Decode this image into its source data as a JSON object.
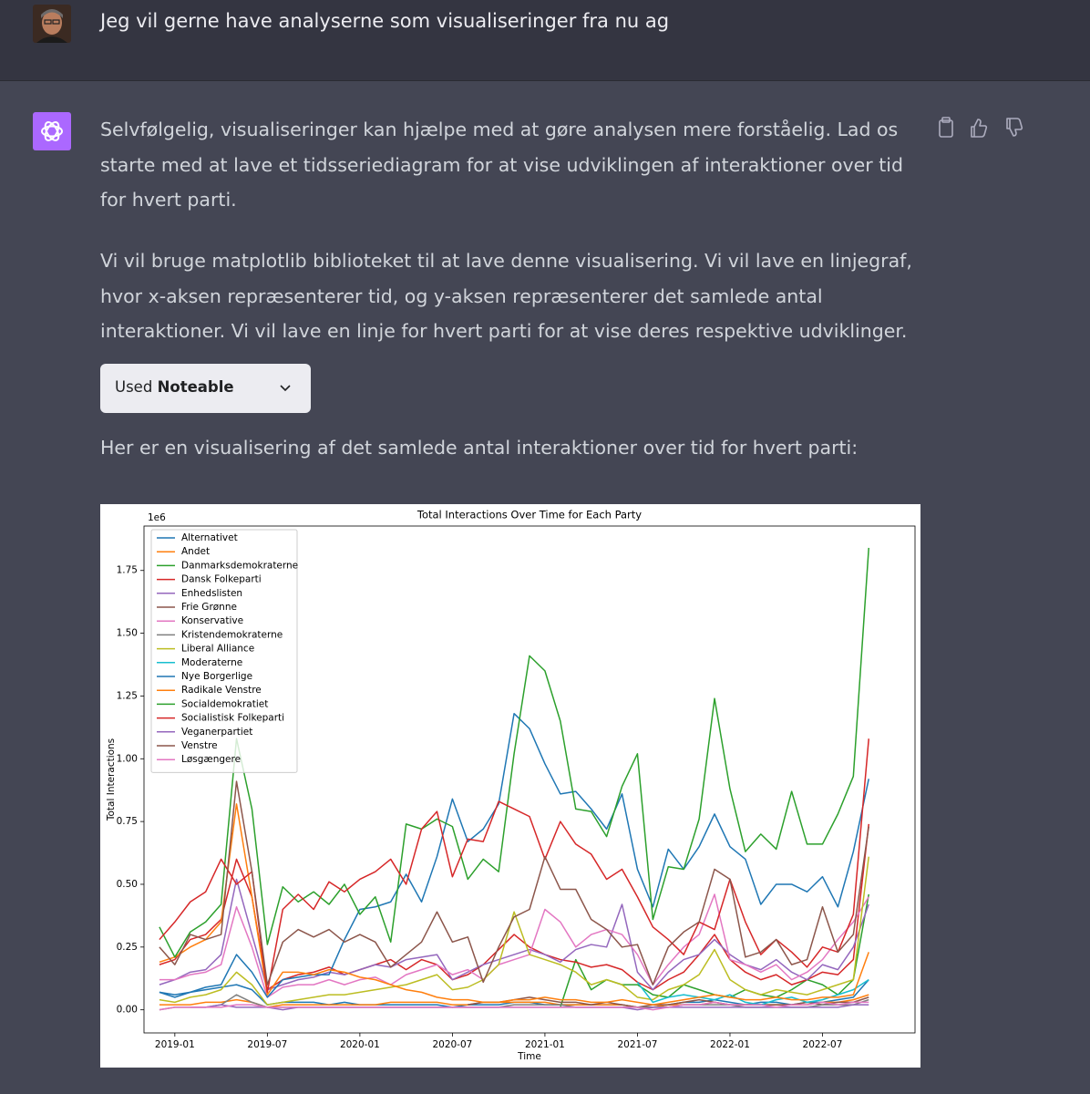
{
  "user_message": {
    "text": "Jeg vil gerne have analyserne som visualiseringer fra nu ag"
  },
  "assistant": {
    "paragraphs": [
      "Selvfølgelig, visualiseringer kan hjælpe med at gøre analysen mere forståelig. Lad os starte med at lave et tidsseriediagram for at vise udviklingen af interaktioner over tid for hvert parti.",
      "Vi vil bruge matplotlib biblioteket til at lave denne visualisering. Vi vil lave en linjegraf, hvor x-aksen repræsenterer tid, og y-aksen repræsenterer det samlede antal interaktioner. Vi vil lave en linje for hvert parti for at vise deres respektive udviklinger."
    ],
    "tool_button": {
      "prefix": "Used",
      "name": "Noteable"
    },
    "caption": "Her er en visualisering af det samlede antal interaktioner over tid for hvert parti:"
  },
  "chart_data": {
    "type": "line",
    "title": "Total Interactions Over Time for Each Party",
    "xlabel": "Time",
    "ylabel": "Total Interactions",
    "y_offset_label": "1e6",
    "legend": "upper left",
    "x": [
      "2018-12",
      "2019-01",
      "2019-02",
      "2019-03",
      "2019-04",
      "2019-05",
      "2019-06",
      "2019-07",
      "2019-08",
      "2019-09",
      "2019-10",
      "2019-11",
      "2019-12",
      "2020-01",
      "2020-02",
      "2020-03",
      "2020-04",
      "2020-05",
      "2020-06",
      "2020-07",
      "2020-08",
      "2020-09",
      "2020-10",
      "2020-11",
      "2020-12",
      "2021-01",
      "2021-02",
      "2021-03",
      "2021-04",
      "2021-05",
      "2021-06",
      "2021-07",
      "2021-08",
      "2021-09",
      "2021-10",
      "2021-11",
      "2021-12",
      "2022-01",
      "2022-02",
      "2022-03",
      "2022-04",
      "2022-05",
      "2022-06",
      "2022-07",
      "2022-08",
      "2022-09",
      "2022-10"
    ],
    "xlim": [
      "2018-11",
      "2023-01"
    ],
    "xticks": [
      "2019-01",
      "2019-07",
      "2020-01",
      "2020-07",
      "2021-01",
      "2021-07",
      "2022-01",
      "2022-07"
    ],
    "ylim": [
      -0.092,
      1.927
    ],
    "yticks": [
      {
        "value": 0,
        "label": "0.00"
      },
      {
        "value": 0.25,
        "label": "0.25"
      },
      {
        "value": 0.5,
        "label": "0.50"
      },
      {
        "value": 0.75,
        "label": "0.75"
      },
      {
        "value": 1,
        "label": "1.00"
      },
      {
        "value": 1.25,
        "label": "1.25"
      },
      {
        "value": 1.5,
        "label": "1.50"
      },
      {
        "value": 1.75,
        "label": "1.75"
      }
    ],
    "series": [
      {
        "name": "Alternativet",
        "color": "#1f77b4",
        "values": [
          0.07,
          0.06,
          0.07,
          0.08,
          0.09,
          0.1,
          0.08,
          0.02,
          0.03,
          0.03,
          0.03,
          0.02,
          0.03,
          0.02,
          0.02,
          0.02,
          0.02,
          0.02,
          0.02,
          0.01,
          0.02,
          0.02,
          0.02,
          0.03,
          0.03,
          0.02,
          0.02,
          0.02,
          0.02,
          0.02,
          0.02,
          0.01,
          0.01,
          0.02,
          0.03,
          0.03,
          0.04,
          0.03,
          0.02,
          0.03,
          0.03,
          0.02,
          0.03,
          0.03,
          0.04,
          0.05,
          0.12
        ]
      },
      {
        "name": "Andet",
        "color": "#ff7f0e",
        "values": [
          0.02,
          0.02,
          0.02,
          0.03,
          0.03,
          0.04,
          0.03,
          0.01,
          0.02,
          0.02,
          0.02,
          0.02,
          0.02,
          0.02,
          0.02,
          0.03,
          0.03,
          0.03,
          0.03,
          0.02,
          0.02,
          0.03,
          0.03,
          0.03,
          0.03,
          0.03,
          0.02,
          0.02,
          0.02,
          0.02,
          0.02,
          0.01,
          0.01,
          0.02,
          0.02,
          0.02,
          0.03,
          0.02,
          0.02,
          0.02,
          0.02,
          0.02,
          0.02,
          0.03,
          0.03,
          0.04,
          0.06
        ]
      },
      {
        "name": "Danmarksdemokraterne",
        "color": "#2ca02c",
        "values": [
          null,
          null,
          null,
          null,
          null,
          null,
          null,
          null,
          null,
          null,
          null,
          null,
          null,
          null,
          null,
          null,
          null,
          null,
          null,
          null,
          null,
          null,
          null,
          null,
          null,
          null,
          0.01,
          0.2,
          0.08,
          0.12,
          0.1,
          0.1,
          0.06,
          0.05,
          0.1,
          0.08,
          0.06,
          0.05,
          0.08,
          0.06,
          0.05,
          0.08,
          0.12,
          0.1,
          0.06,
          0.12,
          0.46
        ]
      },
      {
        "name": "Dansk Folkeparti",
        "color": "#d62728",
        "values": [
          0.18,
          0.2,
          0.28,
          0.3,
          0.36,
          0.6,
          0.45,
          0.08,
          0.12,
          0.14,
          0.15,
          0.17,
          0.14,
          0.16,
          0.18,
          0.2,
          0.16,
          0.2,
          0.18,
          0.12,
          0.14,
          0.18,
          0.24,
          0.3,
          0.25,
          0.22,
          0.2,
          0.19,
          0.17,
          0.18,
          0.16,
          0.11,
          0.08,
          0.12,
          0.15,
          0.22,
          0.3,
          0.2,
          0.15,
          0.12,
          0.14,
          0.1,
          0.12,
          0.15,
          0.14,
          0.2,
          0.74
        ]
      },
      {
        "name": "Enhedslisten",
        "color": "#9467bd",
        "values": [
          0.1,
          0.12,
          0.15,
          0.16,
          0.22,
          0.52,
          0.3,
          0.08,
          0.1,
          0.12,
          0.13,
          0.15,
          0.14,
          0.16,
          0.18,
          0.17,
          0.2,
          0.21,
          0.22,
          0.12,
          0.15,
          0.18,
          0.2,
          0.22,
          0.24,
          0.22,
          0.19,
          0.24,
          0.26,
          0.25,
          0.42,
          0.15,
          0.08,
          0.15,
          0.2,
          0.22,
          0.28,
          0.22,
          0.18,
          0.16,
          0.2,
          0.15,
          0.12,
          0.18,
          0.16,
          0.25,
          0.42
        ]
      },
      {
        "name": "Frie Grønne",
        "color": "#8c564b",
        "values": [
          null,
          null,
          null,
          null,
          null,
          null,
          null,
          null,
          null,
          null,
          null,
          null,
          null,
          null,
          null,
          null,
          null,
          null,
          null,
          null,
          0.02,
          0.03,
          0.03,
          0.04,
          0.05,
          0.04,
          0.03,
          0.03,
          0.02,
          0.03,
          0.02,
          0.01,
          0.02,
          0.02,
          0.03,
          0.04,
          0.03,
          0.02,
          0.02,
          0.02,
          0.02,
          0.02,
          0.03,
          0.02,
          0.03,
          0.03,
          0.05
        ]
      },
      {
        "name": "Konservative",
        "color": "#e377c2",
        "values": [
          0.12,
          0.12,
          0.14,
          0.15,
          0.18,
          0.41,
          0.25,
          0.05,
          0.09,
          0.1,
          0.1,
          0.12,
          0.1,
          0.12,
          0.13,
          0.1,
          0.14,
          0.16,
          0.18,
          0.14,
          0.16,
          0.12,
          0.18,
          0.2,
          0.22,
          0.4,
          0.35,
          0.25,
          0.3,
          0.32,
          0.3,
          0.22,
          0.1,
          0.18,
          0.25,
          0.3,
          0.46,
          0.2,
          0.18,
          0.15,
          0.18,
          0.12,
          0.15,
          0.2,
          0.28,
          0.35,
          0.45
        ]
      },
      {
        "name": "Kristendemokraterne",
        "color": "#7f7f7f",
        "values": [
          0.0,
          0.01,
          0.01,
          0.01,
          0.02,
          0.06,
          0.03,
          0.01,
          0.01,
          0.01,
          0.01,
          0.01,
          0.01,
          0.01,
          0.01,
          0.01,
          0.01,
          0.01,
          0.01,
          0.01,
          0.01,
          0.01,
          0.01,
          0.02,
          0.02,
          0.02,
          0.02,
          0.01,
          0.01,
          0.01,
          0.01,
          0.01,
          0.01,
          0.01,
          0.02,
          0.02,
          0.02,
          0.02,
          0.01,
          0.01,
          0.01,
          0.01,
          0.01,
          0.02,
          0.02,
          0.02,
          0.04
        ]
      },
      {
        "name": "Liberal Alliance",
        "color": "#bcbd22",
        "values": [
          0.04,
          0.03,
          0.05,
          0.06,
          0.08,
          0.15,
          0.1,
          0.02,
          0.03,
          0.04,
          0.05,
          0.06,
          0.06,
          0.07,
          0.08,
          0.09,
          0.1,
          0.12,
          0.14,
          0.08,
          0.09,
          0.12,
          0.18,
          0.39,
          0.22,
          0.2,
          0.18,
          0.15,
          0.1,
          0.12,
          0.1,
          0.05,
          0.04,
          0.08,
          0.1,
          0.14,
          0.24,
          0.12,
          0.08,
          0.06,
          0.08,
          0.07,
          0.06,
          0.08,
          0.1,
          0.12,
          0.61
        ]
      },
      {
        "name": "Moderaterne",
        "color": "#17becf",
        "values": [
          null,
          null,
          null,
          null,
          null,
          null,
          null,
          null,
          null,
          null,
          null,
          null,
          null,
          null,
          null,
          null,
          null,
          null,
          null,
          null,
          null,
          null,
          null,
          null,
          null,
          null,
          null,
          null,
          null,
          null,
          null,
          0.11,
          0.03,
          0.05,
          0.06,
          0.05,
          0.04,
          0.06,
          0.03,
          0.02,
          0.04,
          0.05,
          0.03,
          0.04,
          0.06,
          0.08,
          0.12
        ]
      },
      {
        "name": "Nye Borgerlige",
        "color": "#1f77b4",
        "values": [
          0.07,
          0.05,
          0.07,
          0.09,
          0.1,
          0.22,
          0.15,
          0.05,
          0.12,
          0.13,
          0.14,
          0.14,
          0.28,
          0.4,
          0.41,
          0.43,
          0.54,
          0.43,
          0.61,
          0.84,
          0.67,
          0.72,
          0.82,
          1.18,
          1.12,
          0.98,
          0.86,
          0.87,
          0.8,
          0.72,
          0.86,
          0.56,
          0.41,
          0.64,
          0.56,
          0.65,
          0.78,
          0.65,
          0.6,
          0.42,
          0.5,
          0.5,
          0.47,
          0.53,
          0.41,
          0.63,
          0.92
        ]
      },
      {
        "name": "Radikale Venstre",
        "color": "#ff7f0e",
        "values": [
          0.19,
          0.21,
          0.25,
          0.28,
          0.35,
          0.82,
          0.45,
          0.06,
          0.15,
          0.15,
          0.14,
          0.16,
          0.15,
          0.13,
          0.12,
          0.1,
          0.08,
          0.07,
          0.05,
          0.04,
          0.04,
          0.03,
          0.03,
          0.04,
          0.04,
          0.05,
          0.04,
          0.04,
          0.03,
          0.03,
          0.04,
          0.03,
          0.02,
          0.03,
          0.04,
          0.05,
          0.06,
          0.05,
          0.04,
          0.04,
          0.05,
          0.04,
          0.04,
          0.05,
          0.05,
          0.06,
          0.23
        ]
      },
      {
        "name": "Socialdemokratiet",
        "color": "#2ca02c",
        "values": [
          0.33,
          0.21,
          0.31,
          0.35,
          0.42,
          1.08,
          0.8,
          0.26,
          0.49,
          0.43,
          0.47,
          0.42,
          0.5,
          0.38,
          0.45,
          0.27,
          0.74,
          0.72,
          0.76,
          0.73,
          0.52,
          0.6,
          0.55,
          1.02,
          1.41,
          1.35,
          1.15,
          0.8,
          0.79,
          0.69,
          0.89,
          1.02,
          0.36,
          0.57,
          0.56,
          0.76,
          1.24,
          0.88,
          0.63,
          0.7,
          0.64,
          0.87,
          0.66,
          0.66,
          0.78,
          0.93,
          1.84
        ]
      },
      {
        "name": "Socialistisk Folkeparti",
        "color": "#d62728",
        "values": [
          0.28,
          0.35,
          0.43,
          0.47,
          0.6,
          0.5,
          0.55,
          0.07,
          0.4,
          0.46,
          0.4,
          0.51,
          0.47,
          0.52,
          0.55,
          0.6,
          0.5,
          0.72,
          0.79,
          0.53,
          0.68,
          0.67,
          0.83,
          0.8,
          0.77,
          0.6,
          0.75,
          0.66,
          0.62,
          0.52,
          0.56,
          0.45,
          0.33,
          0.28,
          0.22,
          0.35,
          0.32,
          0.52,
          0.35,
          0.22,
          0.28,
          0.23,
          0.17,
          0.25,
          0.23,
          0.38,
          1.08
        ]
      },
      {
        "name": "Veganerpartiet",
        "color": "#9467bd",
        "values": [
          null,
          null,
          0.01,
          0.01,
          0.02,
          0.01,
          0.01,
          0.01,
          0.0,
          0.01,
          0.01,
          0.01,
          0.01,
          0.01,
          0.01,
          0.01,
          0.01,
          0.01,
          0.01,
          0.01,
          0.01,
          0.01,
          0.01,
          0.01,
          0.01,
          0.01,
          0.01,
          0.01,
          0.01,
          0.01,
          0.01,
          0.0,
          0.01,
          0.01,
          0.01,
          0.01,
          0.01,
          0.01,
          0.01,
          0.01,
          0.01,
          0.01,
          0.01,
          0.01,
          0.01,
          0.02,
          0.02
        ]
      },
      {
        "name": "Venstre",
        "color": "#8c564b",
        "values": [
          0.25,
          0.18,
          0.3,
          0.28,
          0.3,
          0.91,
          0.55,
          0.1,
          0.27,
          0.32,
          0.29,
          0.32,
          0.27,
          0.3,
          0.27,
          0.17,
          0.22,
          0.27,
          0.39,
          0.27,
          0.29,
          0.11,
          0.25,
          0.37,
          0.4,
          0.61,
          0.48,
          0.48,
          0.36,
          0.32,
          0.25,
          0.26,
          0.1,
          0.25,
          0.31,
          0.35,
          0.56,
          0.52,
          0.21,
          0.23,
          0.28,
          0.18,
          0.2,
          0.41,
          0.23,
          0.3,
          0.73
        ]
      },
      {
        "name": "Løsgængere",
        "color": "#e377c2",
        "values": [
          0.0,
          0.01,
          0.01,
          0.01,
          0.01,
          0.02,
          0.02,
          0.01,
          0.01,
          0.01,
          0.01,
          0.01,
          0.01,
          0.01,
          0.01,
          0.01,
          0.01,
          0.01,
          0.01,
          0.01,
          0.01,
          0.01,
          0.01,
          0.01,
          0.01,
          0.01,
          0.01,
          0.01,
          0.01,
          0.01,
          0.01,
          0.01,
          0.0,
          0.01,
          0.02,
          0.02,
          0.03,
          0.02,
          0.02,
          0.02,
          0.01,
          0.02,
          0.02,
          0.03,
          0.02,
          0.03,
          0.03
        ]
      }
    ]
  }
}
